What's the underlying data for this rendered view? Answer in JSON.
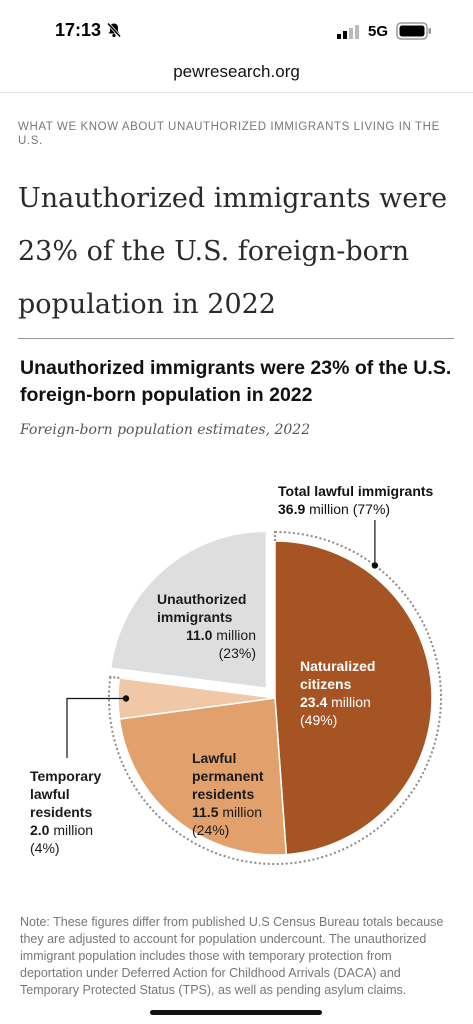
{
  "status_bar": {
    "time": "17:13",
    "network": "5G",
    "icons": [
      "bell-slash-icon",
      "signal-icon",
      "battery-icon"
    ]
  },
  "browser": {
    "url": "pewresearch.org"
  },
  "article": {
    "eyebrow": "WHAT WE KNOW ABOUT UNAUTHORIZED IMMIGRANTS LIVING IN THE U.S.",
    "headline": "Unauthorized immigrants were 23% of the U.S. foreign-born population in 2022"
  },
  "chart_data": {
    "type": "pie",
    "title": "Unauthorized immigrants were 23% of the U.S. foreign-born population in 2022",
    "subtitle": "Foreign-born population estimates, 2022",
    "unit": "million",
    "slices": [
      {
        "name": "Naturalized citizens",
        "value": 23.4,
        "percent": "(49%)",
        "color": "#a65424"
      },
      {
        "name": "Lawful permanent residents",
        "value": 11.5,
        "percent": "(24%)",
        "color": "#e2a06c"
      },
      {
        "name": "Temporary lawful residents",
        "value": 2.0,
        "percent": "(4%)",
        "color": "#f0c8a7"
      },
      {
        "name": "Unauthorized immigrants",
        "value": 11.0,
        "percent": "(23%)",
        "color": "#dedede"
      }
    ],
    "group_annotation": {
      "label": "Total lawful immigrants",
      "value": "36.9",
      "unit": "million",
      "percent": "(77%)"
    },
    "labels": {
      "naturalized": [
        "Naturalized",
        "citizens"
      ],
      "lawful_permanent": [
        "Lawful",
        "permanent",
        "residents"
      ],
      "temporary": [
        "Temporary",
        "lawful",
        "residents"
      ],
      "unauthorized": [
        "Unauthorized",
        "immigrants"
      ]
    }
  },
  "note": "Note: These figures differ from published U.S Census Bureau totals because they are adjusted to account for population undercount. The unauthorized immigrant population includes those with temporary protection from deportation under Deferred Action for Childhood Arrivals (DACA) and Temporary Protected Status (TPS), as well as pending asylum claims."
}
